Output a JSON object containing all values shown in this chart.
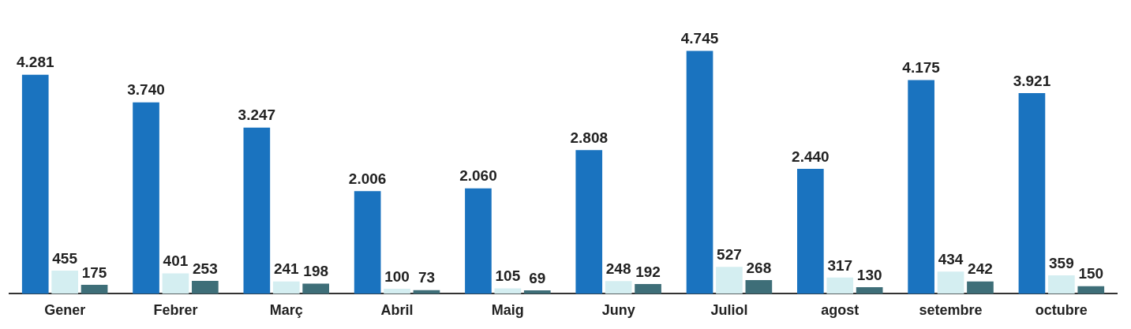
{
  "chart_data": {
    "type": "bar",
    "categories": [
      "Gener",
      "Febrer",
      "Març",
      "Abril",
      "Maig",
      "Juny",
      "Juliol",
      "agost",
      "setembre",
      "octubre"
    ],
    "series": [
      {
        "color": "#1a73bf",
        "values": [
          4281,
          3740,
          3247,
          2006,
          2060,
          2808,
          4745,
          2440,
          4175,
          3921
        ],
        "value_labels": [
          "4.281",
          "3.740",
          "3.247",
          "2.006",
          "2.060",
          "2.808",
          "4.745",
          "2.440",
          "4.175",
          "3.921"
        ]
      },
      {
        "color": "#d4eef1",
        "values": [
          455,
          401,
          241,
          100,
          105,
          248,
          527,
          317,
          434,
          359
        ],
        "value_labels": [
          "455",
          "401",
          "241",
          "100",
          "105",
          "248",
          "527",
          "317",
          "434",
          "359"
        ]
      },
      {
        "color": "#3e6e78",
        "values": [
          175,
          253,
          198,
          73,
          69,
          192,
          268,
          130,
          242,
          150
        ],
        "value_labels": [
          "175",
          "253",
          "198",
          "73",
          "69",
          "192",
          "268",
          "130",
          "242",
          "150"
        ]
      }
    ],
    "grid": false,
    "legend": false
  }
}
